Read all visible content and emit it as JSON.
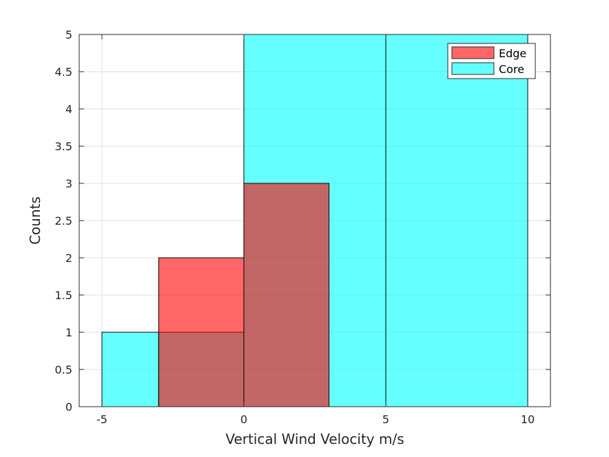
{
  "chart_data": {
    "type": "bar",
    "subtype": "overlaid-histogram",
    "xlabel": "Vertical Wind Velocity m/s",
    "ylabel": "Counts",
    "xlim": [
      -5.8,
      10.8
    ],
    "ylim": [
      0,
      5
    ],
    "xticks": [
      -5,
      0,
      5,
      10
    ],
    "yticks": [
      0,
      0.5,
      1,
      1.5,
      2,
      2.5,
      3,
      3.5,
      4,
      4.5,
      5
    ],
    "ytick_labels": [
      "0",
      "0.5",
      "1",
      "1.5",
      "2",
      "2.5",
      "3",
      "3.5",
      "4",
      "4.5",
      "5"
    ],
    "xtick_labels": [
      "-5",
      "0",
      "5",
      "10"
    ],
    "grid": true,
    "legend_position": "top-right",
    "series": [
      {
        "name": "Core",
        "color": "#00ffff",
        "opacity": 0.6,
        "bins": [
          {
            "x0": -5,
            "x1": -3,
            "count": 1
          },
          {
            "x0": -3,
            "x1": 0,
            "count": 1
          },
          {
            "x0": 0,
            "x1": 5,
            "count": 5
          },
          {
            "x0": 5,
            "x1": 10,
            "count": 5
          }
        ]
      },
      {
        "name": "Edge",
        "color": "#ff0000",
        "opacity": 0.6,
        "bins": [
          {
            "x0": -3,
            "x1": 0,
            "count": 2
          },
          {
            "x0": 0,
            "x1": 3,
            "count": 3
          }
        ]
      }
    ],
    "legend": [
      "Edge",
      "Core"
    ]
  }
}
